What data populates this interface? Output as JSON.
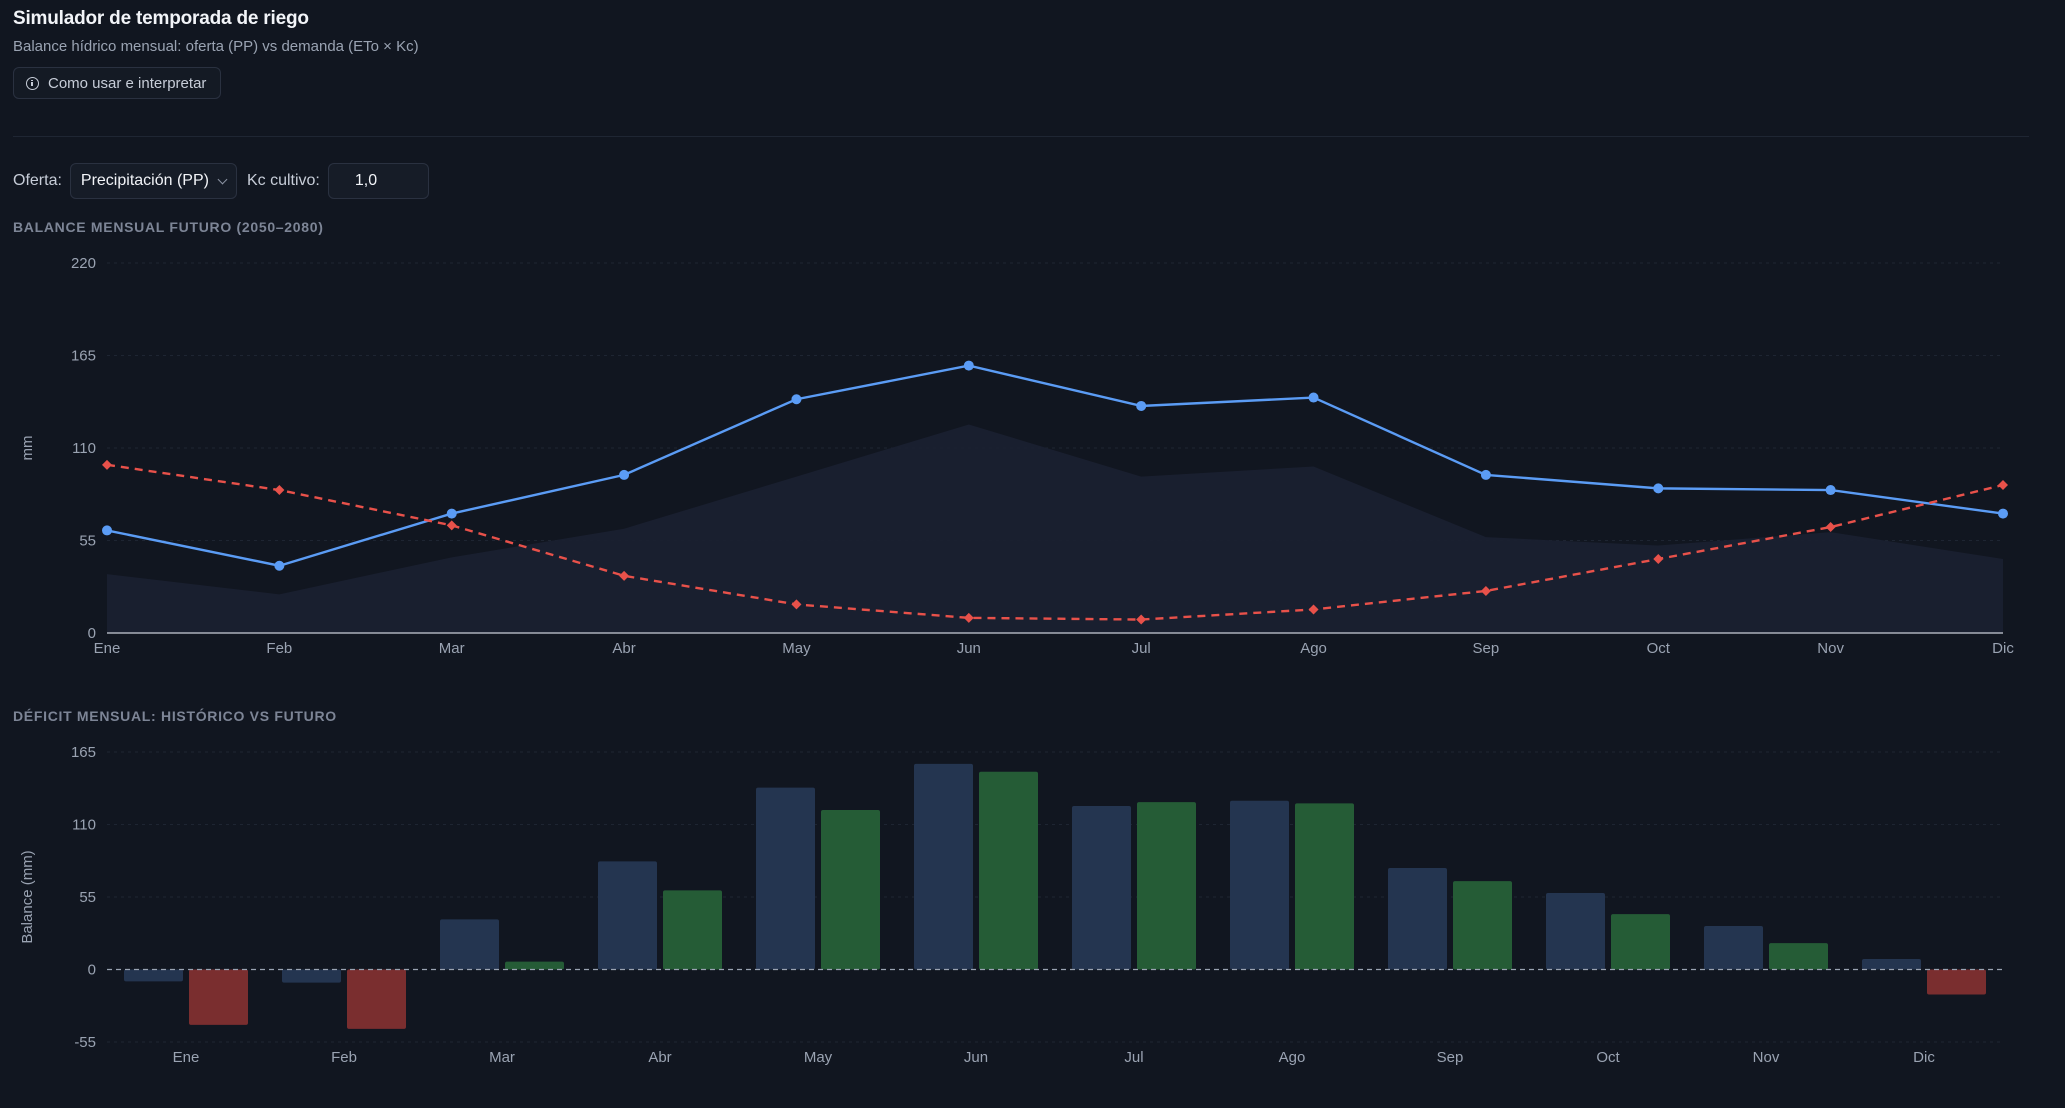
{
  "header": {
    "title": "Simulador de temporada de riego",
    "subtitle": "Balance hídrico mensual: oferta (PP) vs demanda (ETo × Kc)",
    "help_label": "Como usar e interpretar"
  },
  "controls": {
    "supply_label": "Oferta:",
    "supply_value": "Precipitación (PP)",
    "kc_label": "Kc cultivo:",
    "kc_value": "1,0"
  },
  "colors": {
    "supply_line": "#5b9cf5",
    "demand_line": "#e8514a",
    "area_fill": "#1a2030",
    "bar_hist_pos": "#243550",
    "bar_fut_pos": "#255c36",
    "bar_fut_neg": "#7a2e2f"
  },
  "chart_data": [
    {
      "type": "line",
      "title": "BALANCE MENSUAL FUTURO (2050–2080)",
      "ylabel": "mm",
      "ylim": [
        0,
        220
      ],
      "yticks": [
        "220",
        "165",
        "110",
        "55",
        "0"
      ],
      "categories": [
        "Ene",
        "Feb",
        "Mar",
        "Abr",
        "May",
        "Jun",
        "Jul",
        "Ago",
        "Sep",
        "Oct",
        "Nov",
        "Dic"
      ],
      "area": [
        35,
        23,
        45,
        62,
        93,
        124,
        93,
        99,
        57,
        52,
        60,
        44
      ],
      "series": [
        {
          "name": "Oferta (PP)",
          "style": "solid",
          "values": [
            61,
            40,
            71,
            94,
            139,
            159,
            135,
            140,
            94,
            86,
            85,
            71
          ]
        },
        {
          "name": "Demanda (ETo × Kc)",
          "style": "dashed",
          "values": [
            100,
            85,
            64,
            34,
            17,
            9,
            8,
            14,
            25,
            44,
            63,
            88
          ]
        }
      ]
    },
    {
      "type": "bar",
      "title": "DÉFICIT MENSUAL: HISTÓRICO VS FUTURO",
      "ylabel": "Balance (mm)",
      "ylim": [
        -55,
        165
      ],
      "yticks": [
        "165",
        "110",
        "55",
        "0",
        "-55"
      ],
      "categories": [
        "Ene",
        "Feb",
        "Mar",
        "Abr",
        "May",
        "Jun",
        "Jul",
        "Ago",
        "Sep",
        "Oct",
        "Nov",
        "Dic"
      ],
      "series": [
        {
          "name": "Histórico",
          "values": [
            -9,
            -10,
            38,
            82,
            138,
            156,
            124,
            128,
            77,
            58,
            33,
            8
          ]
        },
        {
          "name": "Futuro",
          "values": [
            -42,
            -45,
            6,
            60,
            121,
            150,
            127,
            126,
            67,
            42,
            20,
            -19
          ]
        }
      ]
    }
  ]
}
